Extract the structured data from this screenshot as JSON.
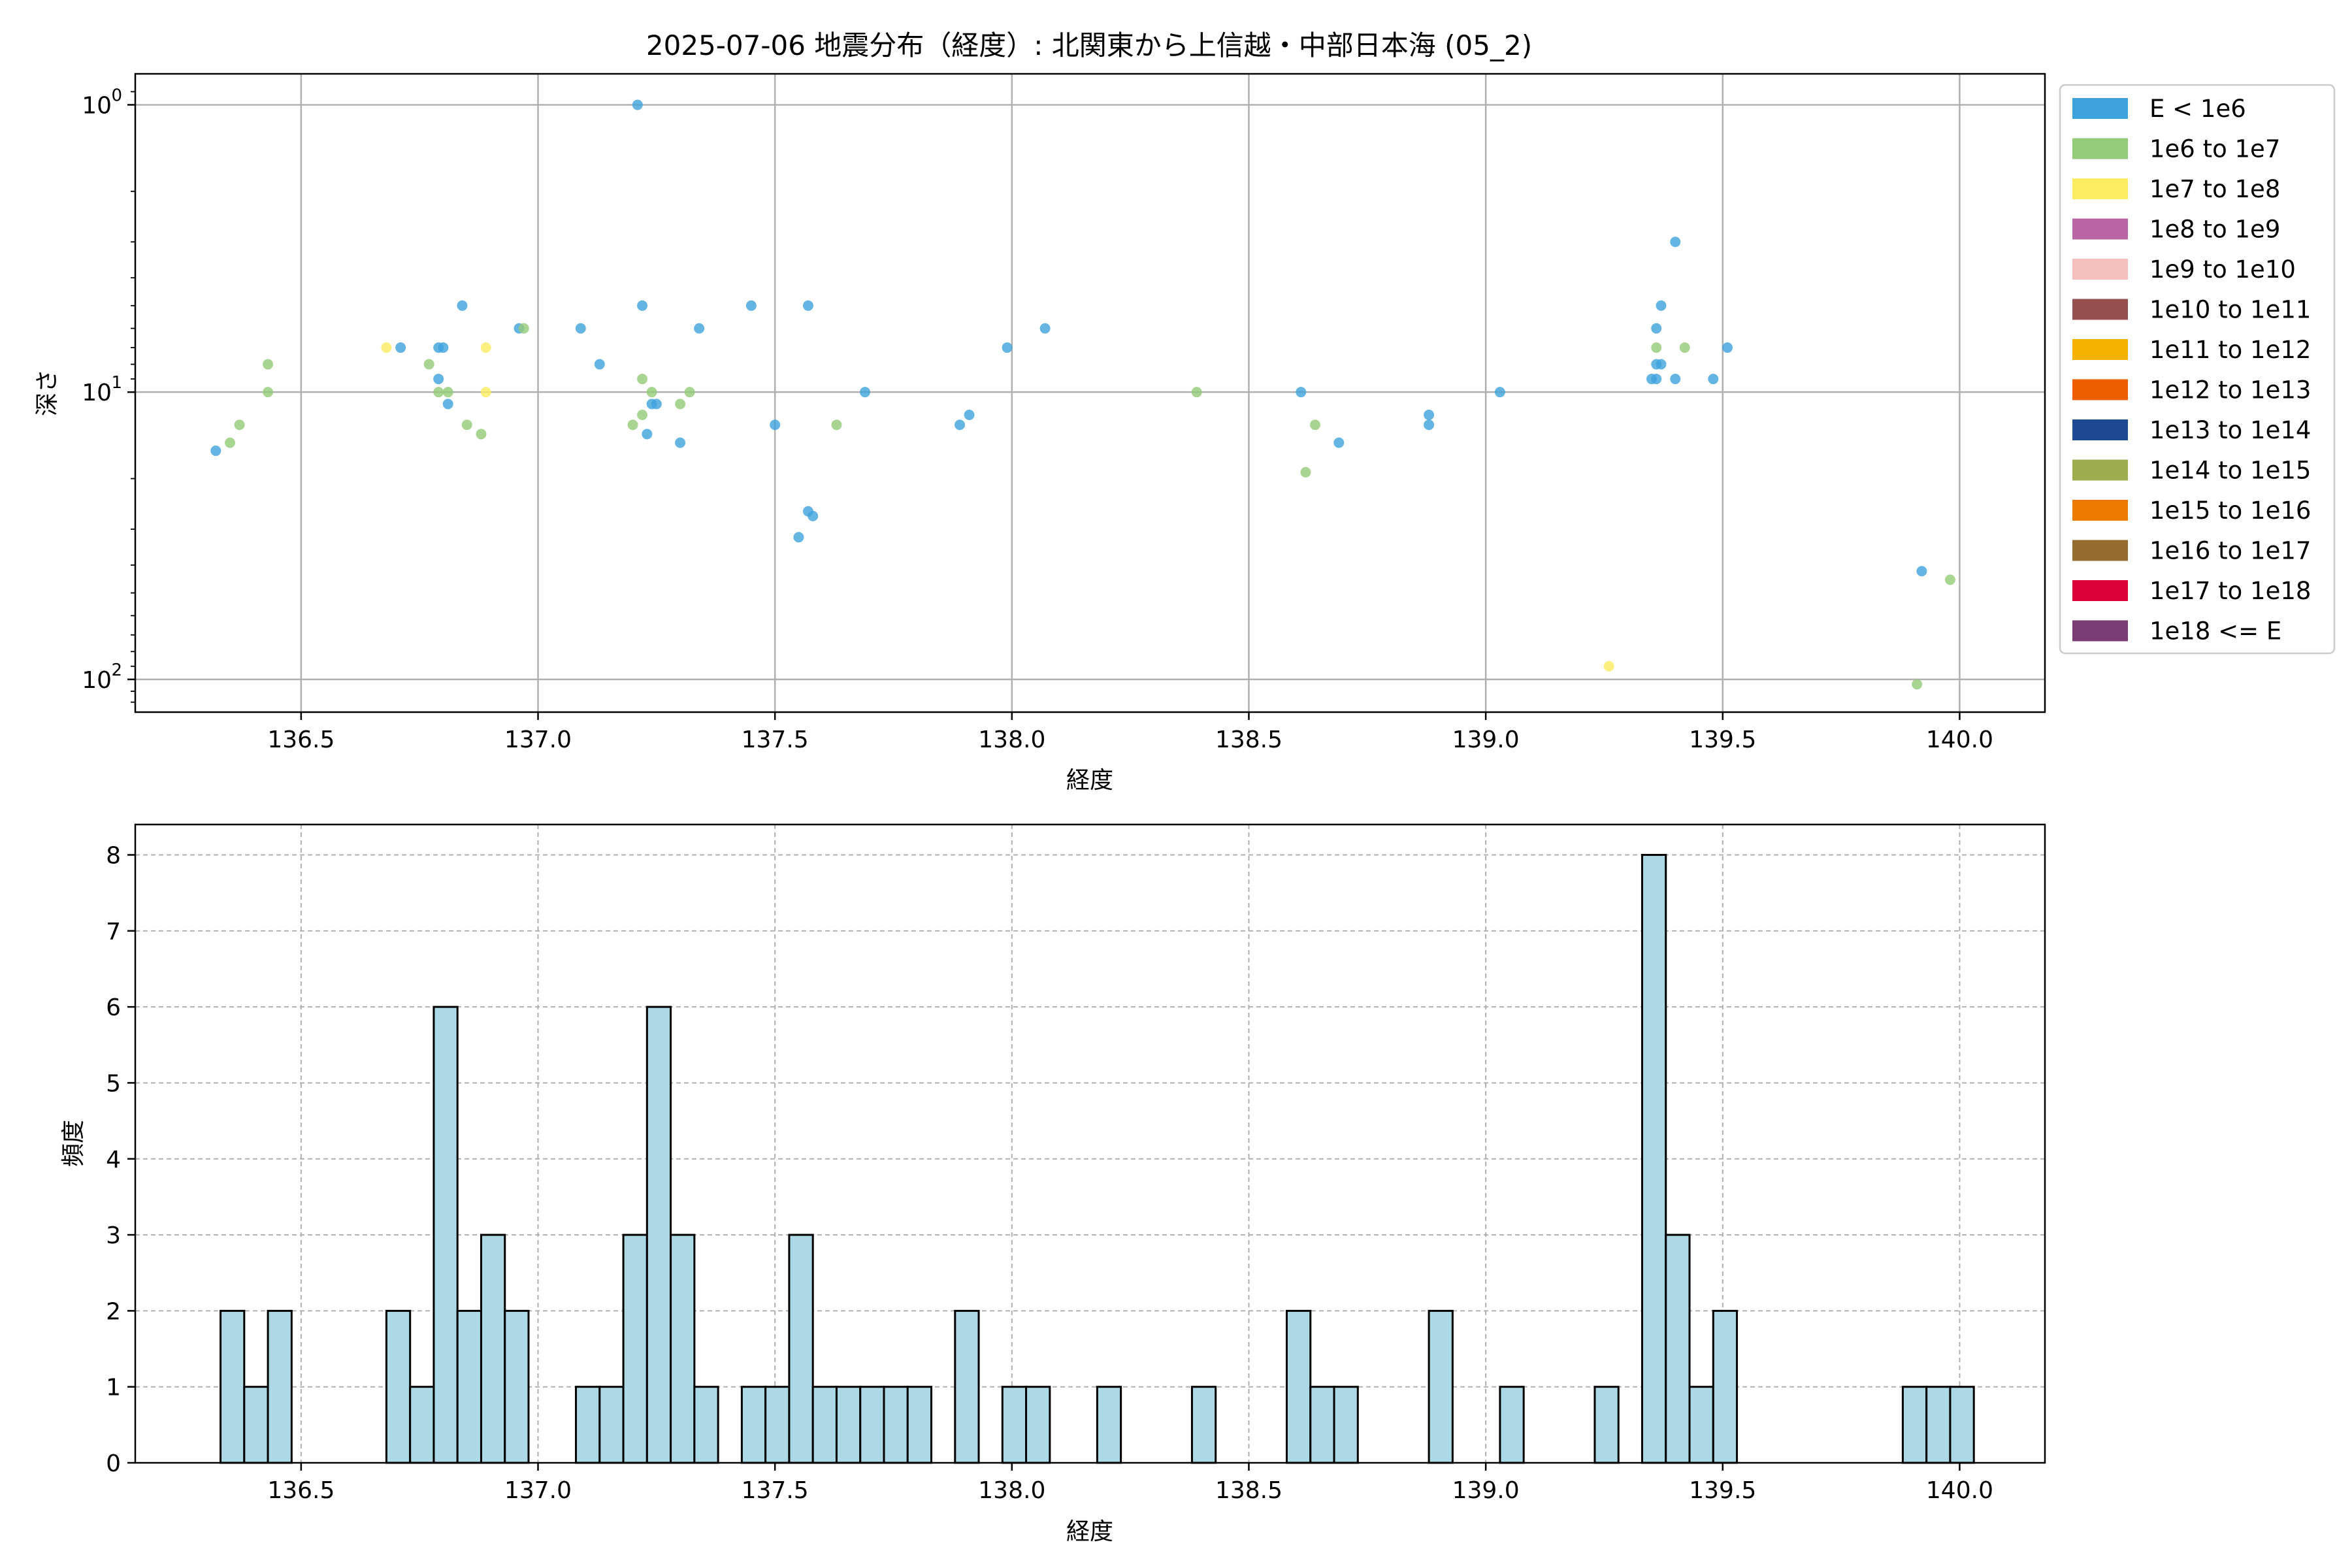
{
  "figure_title": "2025-07-06 地震分布（経度）: 北関東から上信越・中部日本海 (05_2)",
  "chart_data": [
    {
      "type": "scatter",
      "xlabel": "経度",
      "ylabel": "深さ",
      "xlim": [
        136.15,
        140.18
      ],
      "ylim": [
        130,
        0.78
      ],
      "yscale": "log",
      "y_inverted": true,
      "grid": true,
      "x_ticks": [
        136.5,
        137.0,
        137.5,
        138.0,
        138.5,
        139.0,
        139.5,
        140.0
      ],
      "x_tick_labels": [
        "136.5",
        "137.0",
        "137.5",
        "138.0",
        "138.5",
        "139.0",
        "139.5",
        "140.0"
      ],
      "y_ticks": [
        1,
        10,
        100
      ],
      "y_tick_labels": [
        "10",
        "10",
        "10"
      ],
      "y_tick_exponents": [
        "0",
        "1",
        "2"
      ],
      "legend_placement": "outside-right",
      "legend": [
        {
          "label": "E < 1e6",
          "color": "#3ea3dc"
        },
        {
          "label": "1e6 to 1e7",
          "color": "#94cb78"
        },
        {
          "label": "1e7 to 1e8",
          "color": "#fbec61"
        },
        {
          "label": "1e8 to 1e9",
          "color": "#b865a6"
        },
        {
          "label": "1e9 to 1e10",
          "color": "#f5bfbc"
        },
        {
          "label": "1e10 to 1e11",
          "color": "#965050"
        },
        {
          "label": "1e11 to 1e12",
          "color": "#f5b200"
        },
        {
          "label": "1e12 to 1e13",
          "color": "#ed5f00"
        },
        {
          "label": "1e13 to 1e14",
          "color": "#1d4993"
        },
        {
          "label": "1e14 to 1e15",
          "color": "#9ead50"
        },
        {
          "label": "1e15 to 1e16",
          "color": "#ee7a00"
        },
        {
          "label": "1e16 to 1e17",
          "color": "#966d2e"
        },
        {
          "label": "1e17 to 1e18",
          "color": "#dc0039"
        },
        {
          "label": "1e18 <= E",
          "color": "#7b3c73"
        }
      ],
      "points": [
        {
          "x": 136.32,
          "y": 16.0,
          "c": 0
        },
        {
          "x": 136.35,
          "y": 15.0,
          "c": 1
        },
        {
          "x": 136.37,
          "y": 13.0,
          "c": 1
        },
        {
          "x": 136.43,
          "y": 10.0,
          "c": 1
        },
        {
          "x": 136.43,
          "y": 8.0,
          "c": 1
        },
        {
          "x": 136.68,
          "y": 7.0,
          "c": 2
        },
        {
          "x": 136.71,
          "y": 7.0,
          "c": 0
        },
        {
          "x": 136.77,
          "y": 8.0,
          "c": 1
        },
        {
          "x": 136.79,
          "y": 9.0,
          "c": 0
        },
        {
          "x": 136.79,
          "y": 10.0,
          "c": 1
        },
        {
          "x": 136.79,
          "y": 7.0,
          "c": 0
        },
        {
          "x": 136.8,
          "y": 7.0,
          "c": 0
        },
        {
          "x": 136.81,
          "y": 11.0,
          "c": 0
        },
        {
          "x": 136.81,
          "y": 10.0,
          "c": 1
        },
        {
          "x": 136.84,
          "y": 5.0,
          "c": 0
        },
        {
          "x": 136.85,
          "y": 13.0,
          "c": 1
        },
        {
          "x": 136.88,
          "y": 14.0,
          "c": 1
        },
        {
          "x": 136.89,
          "y": 7.0,
          "c": 2
        },
        {
          "x": 136.89,
          "y": 10.0,
          "c": 2
        },
        {
          "x": 136.96,
          "y": 6.0,
          "c": 0
        },
        {
          "x": 136.97,
          "y": 6.0,
          "c": 1
        },
        {
          "x": 137.09,
          "y": 6.0,
          "c": 0
        },
        {
          "x": 137.13,
          "y": 8.0,
          "c": 0
        },
        {
          "x": 137.2,
          "y": 13.0,
          "c": 1
        },
        {
          "x": 137.21,
          "y": 1.0,
          "c": 0
        },
        {
          "x": 137.22,
          "y": 5.0,
          "c": 0
        },
        {
          "x": 137.22,
          "y": 9.0,
          "c": 1
        },
        {
          "x": 137.22,
          "y": 12.0,
          "c": 1
        },
        {
          "x": 137.23,
          "y": 14.0,
          "c": 0
        },
        {
          "x": 137.24,
          "y": 11.0,
          "c": 0
        },
        {
          "x": 137.24,
          "y": 10.0,
          "c": 1
        },
        {
          "x": 137.25,
          "y": 11.0,
          "c": 0
        },
        {
          "x": 137.3,
          "y": 15.0,
          "c": 0
        },
        {
          "x": 137.3,
          "y": 11.0,
          "c": 1
        },
        {
          "x": 137.32,
          "y": 10.0,
          "c": 1
        },
        {
          "x": 137.34,
          "y": 6.0,
          "c": 0
        },
        {
          "x": 137.45,
          "y": 5.0,
          "c": 0
        },
        {
          "x": 137.5,
          "y": 13.0,
          "c": 0
        },
        {
          "x": 137.55,
          "y": 32.0,
          "c": 0
        },
        {
          "x": 137.57,
          "y": 5.0,
          "c": 0
        },
        {
          "x": 137.57,
          "y": 26.0,
          "c": 0
        },
        {
          "x": 137.58,
          "y": 27.0,
          "c": 0
        },
        {
          "x": 137.63,
          "y": 13.0,
          "c": 1
        },
        {
          "x": 137.69,
          "y": 10.0,
          "c": 0
        },
        {
          "x": 137.89,
          "y": 13.0,
          "c": 0
        },
        {
          "x": 137.91,
          "y": 12.0,
          "c": 0
        },
        {
          "x": 137.99,
          "y": 7.0,
          "c": 0
        },
        {
          "x": 138.07,
          "y": 6.0,
          "c": 0
        },
        {
          "x": 138.39,
          "y": 10.0,
          "c": 1
        },
        {
          "x": 138.61,
          "y": 10.0,
          "c": 0
        },
        {
          "x": 138.62,
          "y": 19.0,
          "c": 1
        },
        {
          "x": 138.64,
          "y": 13.0,
          "c": 1
        },
        {
          "x": 138.69,
          "y": 15.0,
          "c": 0
        },
        {
          "x": 138.88,
          "y": 12.0,
          "c": 0
        },
        {
          "x": 138.88,
          "y": 13.0,
          "c": 0
        },
        {
          "x": 139.03,
          "y": 10.0,
          "c": 0
        },
        {
          "x": 139.26,
          "y": 90.0,
          "c": 2
        },
        {
          "x": 139.35,
          "y": 9.0,
          "c": 0
        },
        {
          "x": 139.36,
          "y": 9.0,
          "c": 0
        },
        {
          "x": 139.36,
          "y": 8.0,
          "c": 0
        },
        {
          "x": 139.36,
          "y": 6.0,
          "c": 0
        },
        {
          "x": 139.36,
          "y": 7.0,
          "c": 1
        },
        {
          "x": 139.37,
          "y": 8.0,
          "c": 0
        },
        {
          "x": 139.37,
          "y": 5.0,
          "c": 0
        },
        {
          "x": 139.4,
          "y": 9.0,
          "c": 0
        },
        {
          "x": 139.4,
          "y": 3.0,
          "c": 0
        },
        {
          "x": 139.42,
          "y": 7.0,
          "c": 1
        },
        {
          "x": 139.48,
          "y": 9.0,
          "c": 0
        },
        {
          "x": 139.51,
          "y": 7.0,
          "c": 0
        },
        {
          "x": 139.91,
          "y": 104.0,
          "c": 1
        },
        {
          "x": 139.92,
          "y": 42.0,
          "c": 0
        },
        {
          "x": 139.98,
          "y": 45.0,
          "c": 1
        }
      ]
    },
    {
      "type": "bar",
      "xlabel": "経度",
      "ylabel": "頻度",
      "xlim": [
        136.15,
        140.18
      ],
      "ylim": [
        0,
        8.4
      ],
      "grid": true,
      "bar_color": "#add8e6",
      "bar_edge_color": "#000000",
      "bin_width": 0.05,
      "x_ticks": [
        136.5,
        137.0,
        137.5,
        138.0,
        138.5,
        139.0,
        139.5,
        140.0
      ],
      "x_tick_labels": [
        "136.5",
        "137.0",
        "137.5",
        "138.0",
        "138.5",
        "139.0",
        "139.5",
        "140.0"
      ],
      "y_ticks": [
        0,
        1,
        2,
        3,
        4,
        5,
        6,
        7,
        8
      ],
      "y_tick_labels": [
        "0",
        "1",
        "2",
        "3",
        "4",
        "5",
        "6",
        "7",
        "8"
      ],
      "bins": [
        {
          "x": 136.33,
          "count": 2
        },
        {
          "x": 136.38,
          "count": 1
        },
        {
          "x": 136.43,
          "count": 2
        },
        {
          "x": 136.68,
          "count": 2
        },
        {
          "x": 136.73,
          "count": 1
        },
        {
          "x": 136.78,
          "count": 6
        },
        {
          "x": 136.83,
          "count": 2
        },
        {
          "x": 136.88,
          "count": 3
        },
        {
          "x": 136.93,
          "count": 2
        },
        {
          "x": 137.08,
          "count": 1
        },
        {
          "x": 137.13,
          "count": 1
        },
        {
          "x": 137.18,
          "count": 3
        },
        {
          "x": 137.23,
          "count": 6
        },
        {
          "x": 137.28,
          "count": 3
        },
        {
          "x": 137.33,
          "count": 1
        },
        {
          "x": 137.43,
          "count": 1
        },
        {
          "x": 137.48,
          "count": 1
        },
        {
          "x": 137.53,
          "count": 3
        },
        {
          "x": 137.58,
          "count": 1
        },
        {
          "x": 137.63,
          "count": 1
        },
        {
          "x": 137.68,
          "count": 1
        },
        {
          "x": 137.73,
          "count": 1
        },
        {
          "x": 137.78,
          "count": 1
        },
        {
          "x": 137.88,
          "count": 2
        },
        {
          "x": 137.98,
          "count": 1
        },
        {
          "x": 138.03,
          "count": 1
        },
        {
          "x": 138.18,
          "count": 1
        },
        {
          "x": 138.38,
          "count": 1
        },
        {
          "x": 138.58,
          "count": 2
        },
        {
          "x": 138.63,
          "count": 1
        },
        {
          "x": 138.68,
          "count": 1
        },
        {
          "x": 138.88,
          "count": 2
        },
        {
          "x": 139.03,
          "count": 1
        },
        {
          "x": 139.23,
          "count": 1
        },
        {
          "x": 139.33,
          "count": 8
        },
        {
          "x": 139.38,
          "count": 3
        },
        {
          "x": 139.43,
          "count": 1
        },
        {
          "x": 139.48,
          "count": 2
        },
        {
          "x": 139.88,
          "count": 1
        },
        {
          "x": 139.93,
          "count": 1
        },
        {
          "x": 139.98,
          "count": 1
        }
      ]
    }
  ]
}
